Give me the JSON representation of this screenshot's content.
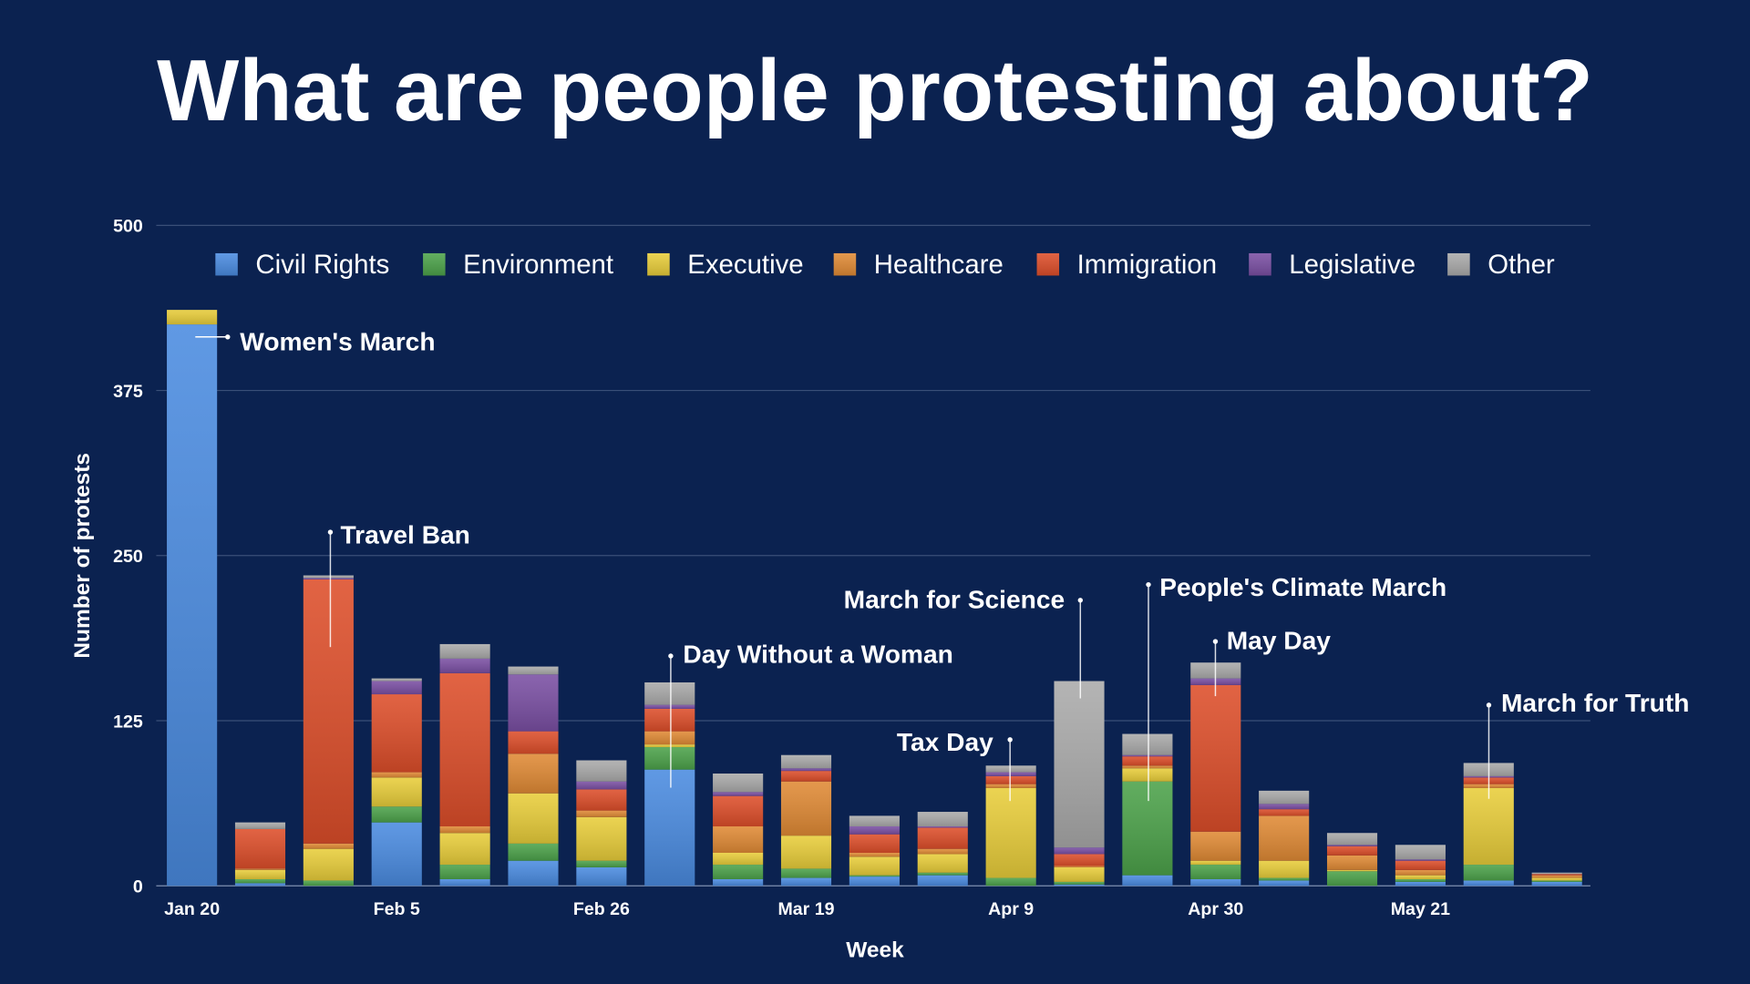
{
  "chart_data": {
    "type": "bar",
    "stacked": true,
    "title": "What are people protesting about?",
    "xlabel": "Week",
    "ylabel": "Number of protests",
    "ylim": [
      0,
      500
    ],
    "yticks": [
      0,
      125,
      250,
      375,
      500
    ],
    "grid": true,
    "legend_position": "top",
    "x_tick_labels": [
      {
        "bar": 0,
        "label": "Jan 20"
      },
      {
        "bar": 3,
        "label": "Feb 5"
      },
      {
        "bar": 6,
        "label": "Feb 26"
      },
      {
        "bar": 9,
        "label": "Mar 19"
      },
      {
        "bar": 12,
        "label": "Apr 9"
      },
      {
        "bar": 15,
        "label": "Apr 30"
      },
      {
        "bar": 18,
        "label": "May 21"
      }
    ],
    "series": [
      {
        "name": "Civil Rights",
        "color": "#4a8be0",
        "values": [
          425,
          2,
          0,
          48,
          5,
          19,
          14,
          88,
          5,
          6,
          7,
          8,
          0,
          1,
          8,
          5,
          4,
          0,
          3,
          4,
          3
        ]
      },
      {
        "name": "Environment",
        "color": "#4ca24a",
        "values": [
          0,
          3,
          4,
          12,
          11,
          13,
          5,
          17,
          11,
          7,
          1,
          2,
          6,
          2,
          71,
          11,
          2,
          11,
          2,
          12,
          1
        ]
      },
      {
        "name": "Executive",
        "color": "#e8cd3a",
        "values": [
          11,
          7,
          24,
          22,
          24,
          38,
          33,
          2,
          9,
          25,
          14,
          14,
          68,
          11,
          10,
          3,
          13,
          1,
          3,
          58,
          2
        ]
      },
      {
        "name": "Healthcare",
        "color": "#e08a35",
        "values": [
          0,
          1,
          4,
          4,
          5,
          30,
          5,
          10,
          20,
          41,
          3,
          4,
          3,
          1,
          2,
          22,
          34,
          11,
          4,
          3,
          2
        ]
      },
      {
        "name": "Immigration",
        "color": "#dd4e2a",
        "values": [
          0,
          30,
          200,
          59,
          116,
          17,
          16,
          17,
          23,
          8,
          14,
          16,
          6,
          9,
          7,
          111,
          5,
          7,
          7,
          5,
          1
        ]
      },
      {
        "name": "Legislative",
        "color": "#7a4fa3",
        "values": [
          0,
          0,
          1,
          10,
          11,
          43,
          6,
          3,
          3,
          2,
          6,
          1,
          3,
          5,
          1,
          5,
          4,
          1,
          1,
          1,
          0
        ]
      },
      {
        "name": "Other",
        "color": "#aaaaaa",
        "values": [
          0,
          5,
          2,
          2,
          11,
          6,
          16,
          17,
          14,
          10,
          8,
          11,
          5,
          126,
          16,
          12,
          10,
          9,
          11,
          10,
          1
        ]
      }
    ],
    "annotations": [
      {
        "bar": 0,
        "label": "Women's March"
      },
      {
        "bar": 2,
        "label": "Travel Ban"
      },
      {
        "bar": 7,
        "label": "Day Without a Woman"
      },
      {
        "bar": 12,
        "label": "Tax Day"
      },
      {
        "bar": 13,
        "label": "March for Science"
      },
      {
        "bar": 14,
        "label": "People's Climate March"
      },
      {
        "bar": 15,
        "label": "May Day"
      },
      {
        "bar": 19,
        "label": "March for Truth"
      }
    ]
  },
  "colors": {
    "background": "#0b2250",
    "gridline": "#3a4f78"
  }
}
